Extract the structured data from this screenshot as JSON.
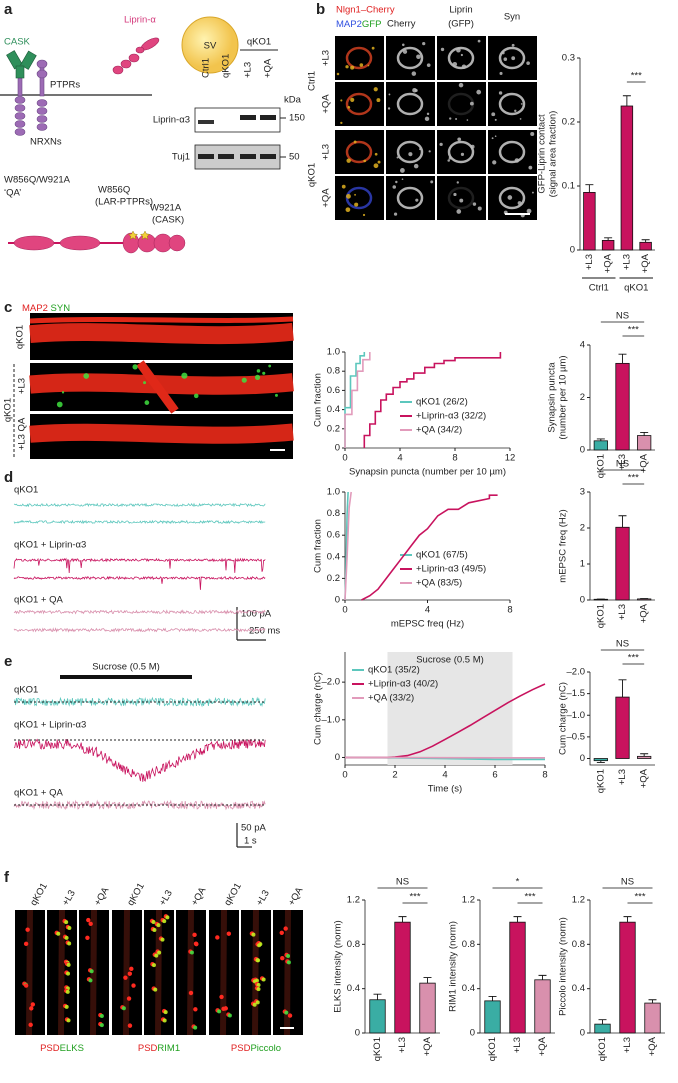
{
  "figure": {
    "letters": [
      "a",
      "b",
      "c",
      "d",
      "e",
      "f"
    ],
    "a": {
      "sv": "SV",
      "liprin": "Liprin-α",
      "cask": "CASK",
      "ptprs": "PTPRs",
      "nrxns": "NRXNs",
      "mut_lar": [
        "W856Q",
        "(LAR-PTPRs)"
      ],
      "mut_cask": [
        "W921A",
        "(CASK)"
      ],
      "qa": [
        "W856Q/W921A",
        "‘QA’"
      ],
      "blot": {
        "lanes": [
          "Ctrl1",
          "qKO1",
          "+L3",
          "+QA"
        ],
        "group": "qKO1",
        "unit": "kDa",
        "rows": [
          "Liprin-α3",
          "Tuj1"
        ],
        "markers": [
          150,
          50
        ]
      }
    },
    "b": {
      "header": [
        "Nlgn1–Cherry",
        "MAP2",
        "GFP",
        "Cherry",
        "Liprin",
        "(GFP)",
        "Syn"
      ],
      "groups": [
        "Ctrl1",
        "qKO1"
      ],
      "rows": [
        "+L3",
        "+QA",
        "+L3",
        "+QA"
      ]
    },
    "c": {
      "stains": [
        "MAP2",
        "SYN"
      ],
      "rows": [
        "qKO1",
        "+L3",
        "+L3 QA"
      ],
      "group": "qKO1"
    },
    "d": {
      "traces": [
        "qKO1",
        "qKO1 + Liprin-α3",
        "qKO1 + QA"
      ],
      "scale": [
        "100 pA",
        "250 ms"
      ]
    },
    "e": {
      "stimulus": "Sucrose (0.5 M)",
      "traces": [
        "qKO1",
        "qKO1 + Liprin-α3",
        "qKO1 + QA"
      ],
      "scale": [
        "50 pA",
        "1 s"
      ]
    },
    "f": {
      "columns": [
        "qKO1",
        "+L3",
        "+QA"
      ],
      "stains": [
        [
          "PSD",
          "ELKS"
        ],
        [
          "PSD",
          "RIM1"
        ],
        [
          "PSD",
          "Piccolo"
        ]
      ]
    }
  },
  "chart_data": [
    {
      "type": "bar",
      "ylabel": [
        "GFP-Liprin contact",
        "(signal area fraction)"
      ],
      "categories": [
        "+L3",
        "+QA",
        "+L3",
        "+QA"
      ],
      "groups": [
        "Ctrl1",
        "qKO1"
      ],
      "values": [
        0.09,
        0.015,
        0.225,
        0.012
      ],
      "errors": [
        0.012,
        0.004,
        0.016,
        0.004
      ],
      "colors": [
        "#c8135e",
        "#c8135e",
        "#c8135e",
        "#c8135e"
      ],
      "ylim": [
        0,
        0.3
      ],
      "yticks": [
        0,
        0.1,
        0.2,
        0.3
      ],
      "significance": [
        "***"
      ]
    },
    {
      "type": "line",
      "xlabel": "Synapsin puncta (number per 10 µm)",
      "ylabel": "Cum fraction",
      "xlim": [
        0,
        12
      ],
      "xticks": [
        0,
        4,
        8,
        12
      ],
      "ylim": [
        0,
        1
      ],
      "yticks": [
        0,
        0.2,
        0.4,
        0.6,
        0.8,
        {
          "value": 1,
          "label": "1.0"
        }
      ],
      "legend": "center right",
      "series": [
        {
          "name": "qKO1 (26/2)",
          "color": "#5cc7bd",
          "x": [
            0,
            0,
            0.4,
            0.4,
            0.8,
            0.8,
            1.1,
            1.1,
            1.4,
            1.4
          ],
          "values": [
            0,
            0.42,
            0.42,
            0.75,
            0.75,
            0.88,
            0.88,
            0.96,
            0.96,
            1
          ]
        },
        {
          "name": "+Liprin-α3 (32/2)",
          "color": "#c8135e",
          "x": [
            1.4,
            1.4,
            1.8,
            1.8,
            2.2,
            2.2,
            2.6,
            2.6,
            3,
            3,
            3.5,
            3.5,
            4,
            4,
            4.5,
            4.5,
            5,
            5,
            5.8,
            5.8,
            6.5,
            6.5,
            7.2,
            7.2,
            8,
            8,
            11.3,
            11.3
          ],
          "values": [
            0,
            0.13,
            0.13,
            0.25,
            0.25,
            0.38,
            0.38,
            0.5,
            0.5,
            0.56,
            0.56,
            0.63,
            0.63,
            0.69,
            0.69,
            0.72,
            0.72,
            0.78,
            0.78,
            0.84,
            0.84,
            0.88,
            0.88,
            0.91,
            0.91,
            0.94,
            0.94,
            1
          ]
        },
        {
          "name": "+QA (34/2)",
          "color": "#e29bbb",
          "x": [
            0,
            0,
            0.5,
            0.5,
            0.9,
            0.9,
            1.3,
            1.3,
            1.8,
            1.8
          ],
          "values": [
            0,
            0.35,
            0.35,
            0.6,
            0.6,
            0.8,
            0.8,
            0.92,
            0.92,
            1
          ]
        }
      ]
    },
    {
      "type": "bar",
      "ylabel": [
        "Synapsin puncta",
        "(number per 10 µm)"
      ],
      "categories": [
        "qKO1",
        "+L3",
        "+QA"
      ],
      "values": [
        0.35,
        3.3,
        0.55
      ],
      "errors": [
        0.07,
        0.35,
        0.12
      ],
      "colors": [
        "#3aada4",
        "#c8135e",
        "#d990ad"
      ],
      "ylim": [
        0,
        4
      ],
      "yticks": [
        0,
        2,
        4
      ],
      "significance": [
        "NS",
        "***"
      ]
    },
    {
      "type": "line",
      "xlabel": "mEPSC freq (Hz)",
      "ylabel": "Cum fraction",
      "xlim": [
        0,
        8
      ],
      "xticks": [
        0,
        4,
        8
      ],
      "ylim": [
        0,
        1
      ],
      "yticks": [
        0,
        0.2,
        0.4,
        0.6,
        0.8,
        {
          "value": 1,
          "label": "1.0"
        }
      ],
      "legend": "center right",
      "series": [
        {
          "name": "qKO1 (67/5)",
          "color": "#5cc7bd",
          "x": [
            0,
            0.05,
            0.1,
            0.15
          ],
          "values": [
            0,
            0.3,
            0.8,
            1
          ]
        },
        {
          "name": "+Liprin-α3 (49/5)",
          "color": "#c8135e",
          "x": [
            0.8,
            1.2,
            1.6,
            2,
            2.4,
            2.8,
            3.2,
            3.6,
            4,
            4.5,
            5,
            5.5,
            6,
            7,
            7,
            7.4
          ],
          "values": [
            0,
            0.04,
            0.1,
            0.2,
            0.3,
            0.4,
            0.5,
            0.6,
            0.66,
            0.78,
            0.84,
            0.84,
            0.9,
            0.94,
            0.97,
            0.97
          ]
        },
        {
          "name": "+QA (83/5)",
          "color": "#e29bbb",
          "x": [
            0,
            0.1,
            0.2,
            0.3
          ],
          "values": [
            0,
            0.4,
            0.85,
            1
          ]
        }
      ]
    },
    {
      "type": "bar",
      "ylabel": [
        "mEPSC freq (Hz)"
      ],
      "categories": [
        "qKO1",
        "+L3",
        "+QA"
      ],
      "values": [
        0.02,
        2.02,
        0.03
      ],
      "errors": [
        0.005,
        0.32,
        0.01
      ],
      "colors": [
        "#3aada4",
        "#c8135e",
        "#d990ad"
      ],
      "ylim": [
        0,
        3
      ],
      "yticks": [
        0,
        1,
        2,
        3
      ],
      "significance": [
        "NS",
        "***"
      ]
    },
    {
      "type": "line",
      "xlabel": "Time (s)",
      "ylabel": "Cum charge (nC)",
      "xlim": [
        0,
        8
      ],
      "xticks": [
        0,
        2,
        4,
        6,
        8
      ],
      "ylim": [
        0.2,
        -2.8
      ],
      "yticks": [
        {
          "value": -2,
          "label": "–2.0"
        },
        {
          "value": -1,
          "label": "–1.0"
        },
        0
      ],
      "legend": "upper left",
      "shade": [
        1.7,
        6.7
      ],
      "shade_label": "Sucrose (0.5 M)",
      "series": [
        {
          "name": "qKO1 (35/2)",
          "color": "#5cc7bd",
          "x": [
            0,
            2,
            4,
            6,
            8
          ],
          "values": [
            0,
            0.01,
            0.03,
            0.05,
            0.05
          ]
        },
        {
          "name": "+Liprin-α3 (40/2)",
          "color": "#c8135e",
          "x": [
            0,
            1,
            1.7,
            2,
            2.5,
            3,
            3.5,
            4,
            4.5,
            5,
            5.5,
            6,
            6.5,
            7,
            7.5,
            8
          ],
          "values": [
            0,
            0,
            0,
            -0.01,
            -0.05,
            -0.15,
            -0.3,
            -0.48,
            -0.66,
            -0.85,
            -1.05,
            -1.25,
            -1.45,
            -1.63,
            -1.8,
            -1.95
          ]
        },
        {
          "name": "+QA (33/2)",
          "color": "#e29bbb",
          "x": [
            0,
            2,
            4,
            6,
            8
          ],
          "values": [
            0,
            0,
            0.005,
            0.01,
            0.01
          ]
        }
      ]
    },
    {
      "type": "bar",
      "ylabel": [
        "Cum charge (nC)"
      ],
      "categories": [
        "qKO1",
        "+L3",
        "+QA"
      ],
      "values": [
        0.05,
        -1.42,
        -0.05
      ],
      "errors": [
        0.04,
        0.4,
        0.06
      ],
      "colors": [
        "#3aada4",
        "#c8135e",
        "#d990ad"
      ],
      "ylim": [
        0.15,
        -2
      ],
      "yticks": [
        0,
        {
          "value": -0.5,
          "label": "–0.5"
        },
        {
          "value": -1,
          "label": "–1.0"
        },
        {
          "value": -1.5,
          "label": "–1.5"
        },
        {
          "value": -2,
          "label": "–2.0"
        }
      ],
      "significance": [
        "NS",
        "***"
      ]
    },
    {
      "type": "bar",
      "ylabel": [
        "ELKS intensity (norm)"
      ],
      "categories": [
        "qKO1",
        "+L3",
        "+QA"
      ],
      "values": [
        0.3,
        1.0,
        0.45
      ],
      "errors": [
        0.05,
        0.05,
        0.05
      ],
      "colors": [
        "#3aada4",
        "#c8135e",
        "#d990ad"
      ],
      "ylim": [
        0,
        1.2
      ],
      "yticks": [
        0,
        0.4,
        0.8,
        1.2
      ],
      "significance": [
        "NS",
        "***"
      ]
    },
    {
      "type": "bar",
      "ylabel": [
        "RIM1 intensity (norm)"
      ],
      "categories": [
        "qKO1",
        "+L3",
        "+QA"
      ],
      "values": [
        0.29,
        1.0,
        0.48
      ],
      "errors": [
        0.04,
        0.05,
        0.04
      ],
      "colors": [
        "#3aada4",
        "#c8135e",
        "#d990ad"
      ],
      "ylim": [
        0,
        1.2
      ],
      "yticks": [
        0,
        0.4,
        0.8,
        1.2
      ],
      "significance": [
        "*",
        "***"
      ]
    },
    {
      "type": "bar",
      "ylabel": [
        "Piccolo intensity (norm)"
      ],
      "categories": [
        "qKO1",
        "+L3",
        "+QA"
      ],
      "values": [
        0.08,
        1.0,
        0.27
      ],
      "errors": [
        0.04,
        0.05,
        0.03
      ],
      "colors": [
        "#3aada4",
        "#c8135e",
        "#d990ad"
      ],
      "ylim": [
        0,
        1.2
      ],
      "yticks": [
        0,
        0.4,
        0.8,
        1.2
      ],
      "significance": [
        "NS",
        "***"
      ]
    }
  ]
}
